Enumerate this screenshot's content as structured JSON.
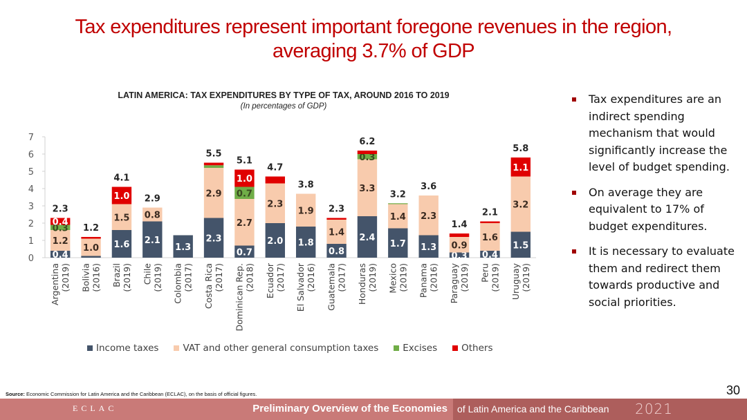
{
  "slide": {
    "title_line1": "Tax expenditures represent important foregone revenues in the region,",
    "title_line2": "averaging 3.7% of GDP",
    "page_number": "30"
  },
  "bullets": [
    "Tax expenditures are an indirect spending mechanism that would significantly increase the level of budget spending.",
    "On average they are equivalent to 17% of budget expenditures.",
    "It is necessary to evaluate them and redirect them towards productive and social priorities."
  ],
  "source": {
    "label": "Source:",
    "text": " Economic Commission for Latin America and the Caribbean (ECLAC), on the basis of official figures."
  },
  "footer": {
    "logo": "ECLAC",
    "main": "Preliminary Overview of the Economies",
    "sub": "of Latin America and the Caribbean",
    "year": "2021"
  },
  "colors": {
    "title": "#c00000",
    "income": "#44546a",
    "vat": "#f8cbad",
    "excises": "#70ad47",
    "others": "#e00000",
    "bullet": "#a00000"
  },
  "chart_data": {
    "type": "bar",
    "stacked": true,
    "title": "LATIN AMERICA: TAX EXPENDITURES BY TYPE OF TAX, AROUND 2016 TO 2019",
    "subtitle": "(In percentages of GDP)",
    "xlabel": "",
    "ylabel": "",
    "ylim": [
      0,
      7
    ],
    "yticks": [
      0,
      1,
      2,
      3,
      4,
      5,
      6,
      7
    ],
    "grid": false,
    "legend_position": "bottom",
    "categories": [
      {
        "country": "Argentina",
        "year": "(2019)"
      },
      {
        "country": "Bolivia",
        "year": "(2016)"
      },
      {
        "country": "Brazil",
        "year": "(2019)"
      },
      {
        "country": "Chile",
        "year": "(2019)"
      },
      {
        "country": "Colombia",
        "year": "(2017)"
      },
      {
        "country": "Costa Rica",
        "year": "(2017)"
      },
      {
        "country": "Dominican Rep.",
        "year": "(2018)"
      },
      {
        "country": "Ecuador",
        "year": "(2017)"
      },
      {
        "country": "El Salvador",
        "year": "(2016)"
      },
      {
        "country": "Guatemala",
        "year": "(2017)"
      },
      {
        "country": "Honduras",
        "year": "(2019)"
      },
      {
        "country": "Mexico",
        "year": "(2019)"
      },
      {
        "country": "Panama",
        "year": "(2016)"
      },
      {
        "country": "Paraguay",
        "year": "(2019)"
      },
      {
        "country": "Peru",
        "year": "(2019)"
      },
      {
        "country": "Uruguay",
        "year": "(2019)"
      }
    ],
    "series": [
      {
        "name": "Income taxes",
        "key": "income",
        "color": "#44546a",
        "label_color": "#ffffff",
        "values": [
          0.4,
          0.1,
          1.6,
          2.1,
          1.3,
          2.3,
          0.7,
          2.0,
          1.8,
          0.8,
          2.4,
          1.7,
          1.3,
          0.3,
          0.4,
          1.5
        ],
        "labels": [
          "0.4",
          "",
          "1.6",
          "2.1",
          "1.3",
          "2.3",
          "0.7",
          "2.0",
          "1.8",
          "0.8",
          "2.4",
          "1.7",
          "1.3",
          "0.3",
          "0.4",
          "1.5"
        ]
      },
      {
        "name": "VAT and other general consumption taxes",
        "key": "vat",
        "color": "#f8cbad",
        "label_color": "#3a2a20",
        "values": [
          1.2,
          1.0,
          1.5,
          0.8,
          0.0,
          2.9,
          2.7,
          2.3,
          1.9,
          1.4,
          3.3,
          1.4,
          2.3,
          0.9,
          1.6,
          3.2
        ],
        "labels": [
          "1.2",
          "1.0",
          "1.5",
          "0.8",
          "",
          "2.9",
          "2.7",
          "2.3",
          "1.9",
          "1.4",
          "3.3",
          "1.4",
          "2.3",
          "0.9",
          "1.6",
          "3.2"
        ]
      },
      {
        "name": "Excises",
        "key": "excises",
        "color": "#70ad47",
        "label_color": "#3a4a20",
        "values": [
          0.3,
          0.0,
          0.0,
          0.0,
          0.0,
          0.15,
          0.7,
          0.0,
          0.0,
          0.0,
          0.3,
          0.05,
          0.0,
          0.0,
          0.0,
          0.0
        ],
        "labels": [
          "0.3",
          "",
          "",
          "",
          "",
          "",
          "0.7",
          "",
          "",
          "",
          "0.3",
          "",
          "",
          "",
          "",
          ""
        ]
      },
      {
        "name": "Others",
        "key": "others",
        "color": "#e00000",
        "label_color": "#ffffff",
        "values": [
          0.4,
          0.1,
          1.0,
          0.0,
          0.0,
          0.15,
          1.0,
          0.4,
          0.0,
          0.1,
          0.2,
          0.0,
          0.0,
          0.2,
          0.1,
          1.1
        ],
        "labels": [
          "0.4",
          "",
          "1.0",
          "",
          "",
          "",
          "1.0",
          "",
          "",
          "",
          "",
          "",
          "",
          "",
          "",
          "1.1"
        ]
      }
    ],
    "totals": [
      "2.3",
      "1.2",
      "4.1",
      "2.9",
      "",
      "5.5",
      "5.1",
      "4.7",
      "3.8",
      "2.3",
      "6.2",
      "3.2",
      "3.6",
      "1.4",
      "2.1",
      "5.8"
    ]
  }
}
